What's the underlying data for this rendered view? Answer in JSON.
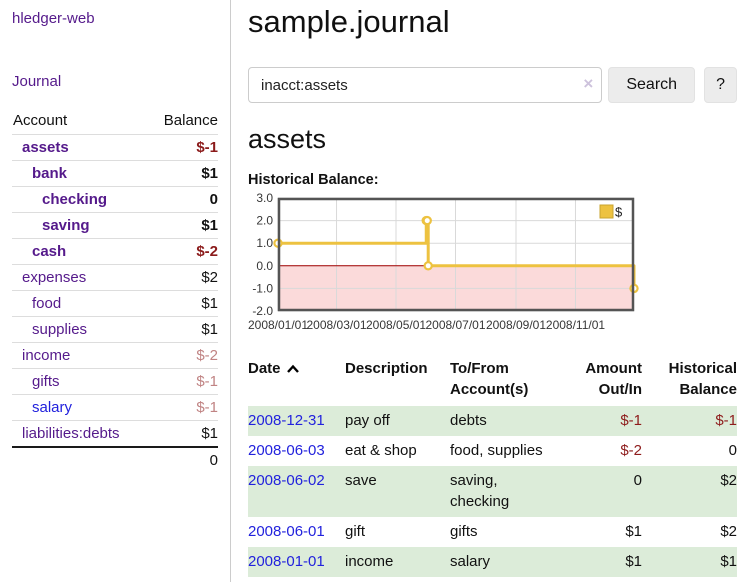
{
  "app": {
    "title": "hledger-web"
  },
  "sidebar": {
    "journal_link": "Journal",
    "accounts_table": {
      "account_header": "Account",
      "balance_header": "Balance",
      "rows": [
        {
          "name": "assets",
          "indent": 1,
          "bold": true,
          "balance": "$-1",
          "balance_style": "neg-strong"
        },
        {
          "name": "bank",
          "indent": 2,
          "bold": true,
          "balance": "$1",
          "balance_style": "pos"
        },
        {
          "name": "checking",
          "indent": 3,
          "bold": true,
          "balance": "0",
          "balance_style": "pos"
        },
        {
          "name": "saving",
          "indent": 3,
          "bold": true,
          "balance": "$1",
          "balance_style": "pos"
        },
        {
          "name": "cash",
          "indent": 2,
          "bold": true,
          "balance": "$-2",
          "balance_style": "neg-strong"
        },
        {
          "name": "expenses",
          "indent": 1,
          "bold": false,
          "balance": "$2",
          "balance_style": "pos"
        },
        {
          "name": "food",
          "indent": 2,
          "bold": false,
          "balance": "$1",
          "balance_style": "pos"
        },
        {
          "name": "supplies",
          "indent": 2,
          "bold": false,
          "balance": "$1",
          "balance_style": "pos"
        },
        {
          "name": "income",
          "indent": 1,
          "bold": false,
          "balance": "$-2",
          "balance_style": "neg-soft"
        },
        {
          "name": "gifts",
          "indent": 2,
          "bold": false,
          "balance": "$-1",
          "balance_style": "neg-soft"
        },
        {
          "name": "salary",
          "indent": 2,
          "bold": false,
          "link_color": "blue",
          "balance": "$-1",
          "balance_style": "neg-soft"
        },
        {
          "name": "liabilities:debts",
          "indent": 1,
          "bold": false,
          "balance": "$1",
          "balance_style": "pos"
        }
      ],
      "total": "0"
    }
  },
  "main": {
    "title": "sample.journal",
    "search": {
      "value": "inacct:assets",
      "clear_icon": "×",
      "button_label": "Search",
      "help_label": "?"
    },
    "account_heading": "assets",
    "chart_label": "Historical Balance:"
  },
  "chart_data": {
    "type": "line",
    "step": true,
    "title": "Historical Balance",
    "series": [
      {
        "name": "$",
        "color": "#edc240",
        "points": [
          [
            "2008-01-01",
            1
          ],
          [
            "2008-06-01",
            2
          ],
          [
            "2008-06-02",
            2
          ],
          [
            "2008-06-03",
            0
          ],
          [
            "2008-12-31",
            -1
          ]
        ]
      }
    ],
    "x_range": [
      "2008-01-01",
      "2008-12-31"
    ],
    "x_tick_labels": [
      "2008/01/01",
      "2008/03/01",
      "2008/05/01",
      "2008/07/01",
      "2008/09/01",
      "2008/11/01"
    ],
    "y_ticks": [
      3.0,
      2.0,
      1.0,
      0.0,
      -1.0,
      -2.0
    ],
    "ylim": [
      -2,
      3
    ],
    "grid": true,
    "legend": {
      "label": "$",
      "position": "top-right"
    },
    "colors": {
      "negative_region": "#fbdada",
      "zero_line": "#a40000",
      "grid_line": "#d9d9d9",
      "border": "#545454"
    }
  },
  "transactions": {
    "headers": {
      "date": "Date",
      "description": "Description",
      "accounts": "To/From\nAccount(s)",
      "amount": "Amount\nOut/In",
      "balance": "Historical\nBalance"
    },
    "rows": [
      {
        "date": "2008-12-31",
        "description": "pay off",
        "accounts": "debts",
        "amount": "$-1",
        "amount_neg": true,
        "balance": "$-1",
        "balance_neg": true
      },
      {
        "date": "2008-06-03",
        "description": "eat & shop",
        "accounts": "food, supplies",
        "amount": "$-2",
        "amount_neg": true,
        "balance": "0",
        "balance_neg": false
      },
      {
        "date": "2008-06-02",
        "description": "save",
        "accounts": "saving,\nchecking",
        "amount": "0",
        "amount_neg": false,
        "balance": "$2",
        "balance_neg": false
      },
      {
        "date": "2008-06-01",
        "description": "gift",
        "accounts": "gifts",
        "amount": "$1",
        "amount_neg": false,
        "balance": "$2",
        "balance_neg": false
      },
      {
        "date": "2008-01-01",
        "description": "income",
        "accounts": "salary",
        "amount": "$1",
        "amount_neg": false,
        "balance": "$1",
        "balance_neg": false
      }
    ]
  }
}
